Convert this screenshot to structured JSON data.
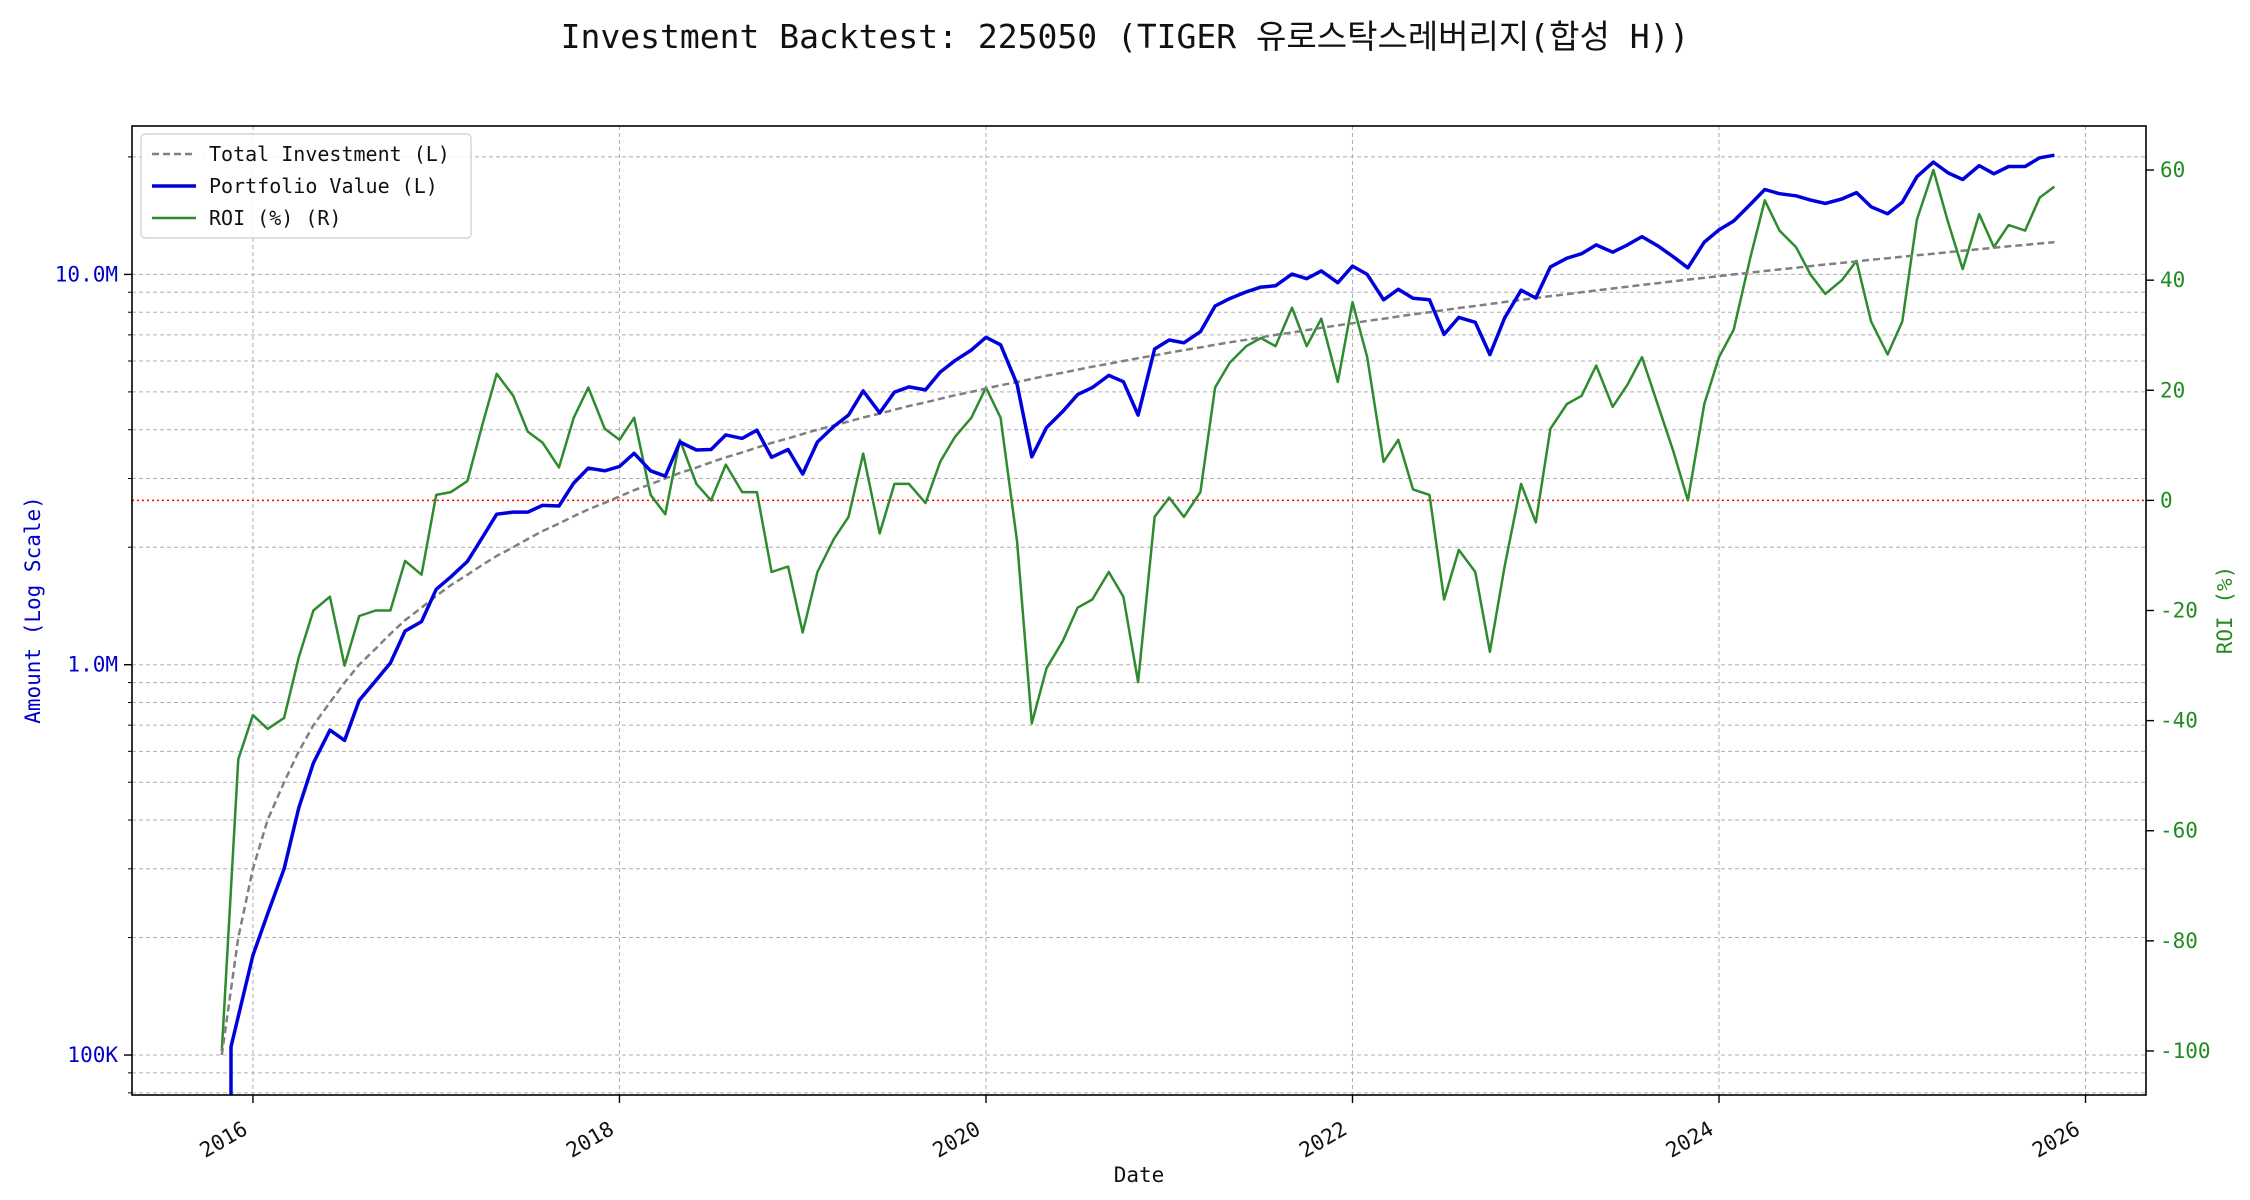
{
  "chart_data": {
    "type": "line",
    "title": "Investment Backtest: 225050 (TIGER 유로스탁스레버리지(합성 H))",
    "xlabel": "Date",
    "ylabel_left": "Amount (Log Scale)",
    "ylabel_right": "ROI (%)",
    "x_ticks": [
      "2016",
      "2018",
      "2020",
      "2022",
      "2024",
      "2026"
    ],
    "x_range": [
      2015.34,
      2026.33
    ],
    "left_axis": {
      "scale": "log",
      "ylim": [
        79000,
        24000000
      ],
      "tick_labels": [
        "100K",
        "1.0M",
        "10.0M"
      ],
      "tick_values": [
        100000,
        1000000,
        10000000
      ]
    },
    "right_axis": {
      "ylim": [
        -108,
        68
      ],
      "tick_labels": [
        "-100",
        "-80",
        "-60",
        "-40",
        "-20",
        "0",
        "20",
        "40",
        "60"
      ],
      "tick_values": [
        -100,
        -80,
        -60,
        -40,
        -20,
        0,
        20,
        40,
        60
      ]
    },
    "reference_line": {
      "axis": "right",
      "value": 0,
      "color": "#ff0000",
      "style": "dotted"
    },
    "grid": true,
    "legend_position": "top-left",
    "legend": [
      "Total Investment (L)",
      "Portfolio Value (L)",
      "ROI (%) (R)"
    ],
    "colors": {
      "total_investment": "#808080",
      "portfolio_value": "#0000dd",
      "roi": "#2e8b2e"
    },
    "dates_x": [
      2015.83,
      2015.92,
      2016.0,
      2016.08,
      2016.17,
      2016.25,
      2016.33,
      2016.42,
      2016.5,
      2016.58,
      2016.67,
      2016.75,
      2016.83,
      2016.92,
      2017.0,
      2017.08,
      2017.17,
      2017.25,
      2017.33,
      2017.42,
      2017.5,
      2017.58,
      2017.67,
      2017.75,
      2017.83,
      2017.92,
      2018.0,
      2018.08,
      2018.17,
      2018.25,
      2018.33,
      2018.42,
      2018.5,
      2018.58,
      2018.67,
      2018.75,
      2018.83,
      2018.92,
      2019.0,
      2019.08,
      2019.17,
      2019.25,
      2019.33,
      2019.42,
      2019.5,
      2019.58,
      2019.67,
      2019.75,
      2019.83,
      2019.92,
      2020.0,
      2020.08,
      2020.17,
      2020.25,
      2020.33,
      2020.42,
      2020.5,
      2020.58,
      2020.67,
      2020.75,
      2020.83,
      2020.92,
      2021.0,
      2021.08,
      2021.17,
      2021.25,
      2021.33,
      2021.42,
      2021.5,
      2021.58,
      2021.67,
      2021.75,
      2021.83,
      2021.92,
      2022.0,
      2022.08,
      2022.17,
      2022.25,
      2022.33,
      2022.42,
      2022.5,
      2022.58,
      2022.67,
      2022.75,
      2022.83,
      2022.92,
      2023.0,
      2023.08,
      2023.17,
      2023.25,
      2023.33,
      2023.42,
      2023.5,
      2023.58,
      2023.67,
      2023.75,
      2023.83,
      2023.92,
      2024.0,
      2024.08,
      2024.17,
      2024.25,
      2024.33,
      2024.42,
      2024.5,
      2024.58,
      2024.67,
      2024.75,
      2024.83,
      2024.92,
      2025.0,
      2025.08,
      2025.17,
      2025.25,
      2025.33,
      2025.42,
      2025.5,
      2025.58,
      2025.67,
      2025.75,
      2025.83
    ],
    "series": [
      {
        "name": "Total Investment (L)",
        "axis": "left",
        "style": "dashed",
        "values": [
          100000,
          200000,
          300000,
          400000,
          500000,
          600000,
          700000,
          800000,
          900000,
          1000000,
          1100000,
          1200000,
          1300000,
          1400000,
          1500000,
          1600000,
          1700000,
          1800000,
          1900000,
          2000000,
          2100000,
          2200000,
          2300000,
          2400000,
          2500000,
          2600000,
          2700000,
          2800000,
          2900000,
          3000000,
          3100000,
          3200000,
          3300000,
          3400000,
          3500000,
          3600000,
          3700000,
          3800000,
          3900000,
          4000000,
          4100000,
          4200000,
          4300000,
          4400000,
          4500000,
          4600000,
          4700000,
          4800000,
          4900000,
          5000000,
          5100000,
          5200000,
          5300000,
          5400000,
          5500000,
          5600000,
          5700000,
          5800000,
          5900000,
          6000000,
          6100000,
          6200000,
          6300000,
          6400000,
          6500000,
          6600000,
          6700000,
          6800000,
          6900000,
          7000000,
          7100000,
          7200000,
          7300000,
          7400000,
          7500000,
          7600000,
          7700000,
          7800000,
          7900000,
          8000000,
          8100000,
          8200000,
          8300000,
          8400000,
          8500000,
          8600000,
          8700000,
          8800000,
          8900000,
          9000000,
          9100000,
          9200000,
          9300000,
          9400000,
          9500000,
          9600000,
          9700000,
          9800000,
          9900000,
          10000000,
          10100000,
          10200000,
          10300000,
          10400000,
          10500000,
          10600000,
          10700000,
          10800000,
          10900000,
          11000000,
          11100000,
          11200000,
          11300000,
          11400000,
          11500000,
          11600000,
          11700000,
          11800000,
          11900000,
          12000000,
          12100000
        ]
      },
      {
        "name": "Portfolio Value (L)",
        "axis": "left",
        "style": "solid",
        "values": [
          null,
          null,
          180000,
          230000,
          300000,
          430000,
          560000,
          680000,
          640000,
          810000,
          910000,
          1010000,
          1220000,
          1290000,
          1560000,
          1680000,
          1840000,
          2110000,
          2430000,
          2460000,
          2460000,
          2560000,
          2550000,
          2920000,
          3190000,
          3140000,
          3220000,
          3480000,
          3140000,
          3040000,
          3720000,
          3550000,
          3560000,
          3880000,
          3800000,
          3990000,
          3400000,
          3560000,
          3080000,
          3720000,
          4080000,
          4360000,
          5030000,
          4420000,
          4990000,
          5150000,
          5060000,
          5620000,
          6010000,
          6400000,
          6900000,
          6600000,
          5230000,
          3410000,
          4050000,
          4460000,
          4920000,
          5130000,
          5510000,
          5310000,
          4360000,
          6440000,
          6790000,
          6680000,
          7130000,
          8300000,
          8670000,
          9020000,
          9280000,
          9350000,
          10020000,
          9750000,
          10210000,
          9520000,
          10500000,
          10000000,
          8610000,
          9160000,
          8690000,
          8610000,
          7020000,
          7760000,
          7540000,
          6230000,
          7730000,
          9110000,
          8700000,
          10450000,
          11000000,
          11300000,
          11900000,
          11400000,
          11900000,
          12500000,
          11800000,
          11100000,
          10400000,
          12100000,
          13000000,
          13700000,
          15100000,
          16500000,
          16100000,
          15900000,
          15500000,
          15200000,
          15600000,
          16200000,
          14900000,
          14300000,
          15300000,
          17800000,
          19400000,
          18200000,
          17500000,
          19000000,
          18100000,
          18900000,
          18900000,
          19900000,
          20200000
        ]
      },
      {
        "name": "ROI (%) (R)",
        "axis": "right",
        "style": "solid",
        "values": [
          -100,
          -47,
          -39,
          -41.5,
          -39.5,
          -28.5,
          -20,
          -17.5,
          -30,
          -21,
          -20,
          -20,
          -11,
          -13.5,
          1,
          1.5,
          3.5,
          13.5,
          23,
          19,
          12.5,
          10.5,
          6,
          15,
          20.5,
          13,
          11,
          15,
          1,
          -2.5,
          11,
          3,
          0,
          6.5,
          1.5,
          1.5,
          -13,
          -12,
          -24,
          -13,
          -7,
          -3,
          8.5,
          -6,
          3,
          3,
          -0.5,
          7,
          11.5,
          15,
          20.5,
          15,
          -7.5,
          -40.5,
          -30.5,
          -25.5,
          -19.5,
          -18,
          -13,
          -17.5,
          -33,
          -3,
          0.5,
          -3,
          1.5,
          20.5,
          25,
          28,
          29.5,
          28,
          35,
          28,
          33,
          21.5,
          36,
          26,
          7,
          11,
          2,
          1,
          -18,
          -9,
          -13,
          -27.5,
          -12,
          3,
          -4,
          13,
          17.5,
          19,
          24.5,
          17,
          21,
          26,
          17,
          9,
          0,
          17.5,
          26,
          31,
          44,
          54.5,
          49,
          46,
          41,
          37.5,
          40,
          43.5,
          32.5,
          26.5,
          32.5,
          51,
          60,
          50.5,
          42,
          52,
          46,
          50,
          49,
          55,
          57
        ]
      }
    ]
  }
}
